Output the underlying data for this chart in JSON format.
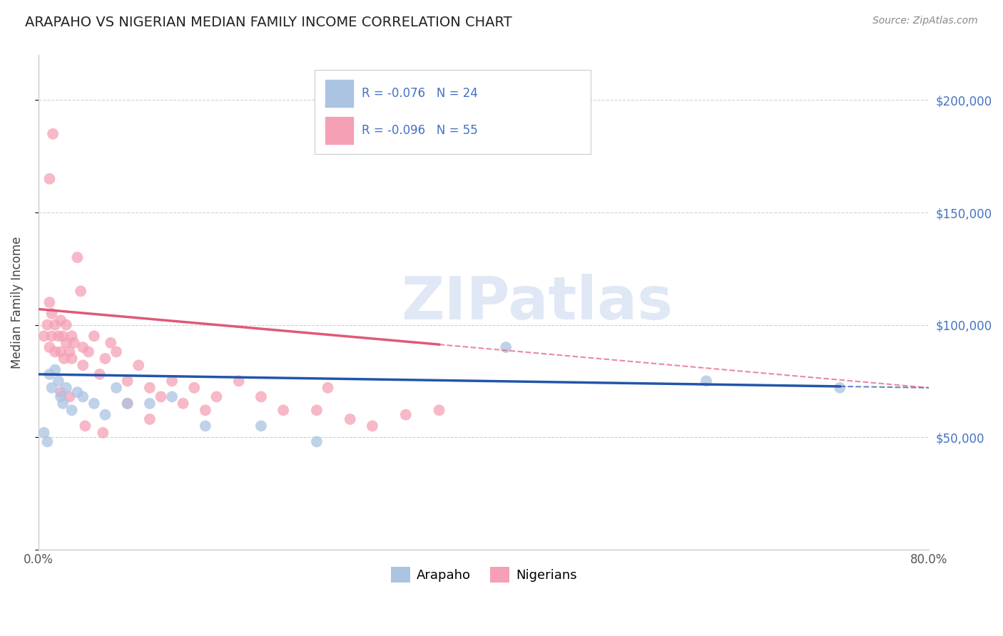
{
  "title": "ARAPAHO VS NIGERIAN MEDIAN FAMILY INCOME CORRELATION CHART",
  "source": "Source: ZipAtlas.com",
  "ylabel": "Median Family Income",
  "xmin": 0.0,
  "xmax": 80.0,
  "ymin": 0,
  "ymax": 220000,
  "yticks": [
    0,
    50000,
    100000,
    150000,
    200000
  ],
  "ytick_labels": [
    "",
    "$50,000",
    "$100,000",
    "$150,000",
    "$200,000"
  ],
  "grid_color": "#cccccc",
  "background_color": "#ffffff",
  "watermark_text": "ZIPatlas",
  "arapaho_color": "#aac4e2",
  "nigerian_color": "#f5a0b5",
  "arapaho_line_color": "#2255aa",
  "nigerian_line_color": "#e05878",
  "legend_bottom_arapaho": "Arapaho",
  "legend_bottom_nigerian": "Nigerians",
  "arapaho_R": -0.076,
  "arapaho_N": 24,
  "nigerian_R": -0.096,
  "nigerian_N": 55,
  "arapaho_line_x0": 0,
  "arapaho_line_x1": 80,
  "arapaho_line_y0": 78000,
  "arapaho_line_y1": 72000,
  "nigerian_line_x0": 0,
  "nigerian_line_x1": 80,
  "nigerian_line_y0": 107000,
  "nigerian_line_y1": 72000,
  "nigerian_solid_end_x": 36,
  "arapaho_solid_end_x": 72,
  "arapaho_scatter_x": [
    0.5,
    0.8,
    1.0,
    1.2,
    1.5,
    1.8,
    2.0,
    2.2,
    2.5,
    3.0,
    3.5,
    4.0,
    5.0,
    6.0,
    7.0,
    8.0,
    10.0,
    12.0,
    15.0,
    20.0,
    25.0,
    42.0,
    60.0,
    72.0
  ],
  "arapaho_scatter_y": [
    52000,
    48000,
    78000,
    72000,
    80000,
    75000,
    68000,
    65000,
    72000,
    62000,
    70000,
    68000,
    65000,
    60000,
    72000,
    65000,
    65000,
    68000,
    55000,
    55000,
    48000,
    90000,
    75000,
    72000
  ],
  "nigerian_scatter_x": [
    0.5,
    0.8,
    1.0,
    1.0,
    1.2,
    1.2,
    1.5,
    1.5,
    1.8,
    2.0,
    2.0,
    2.2,
    2.3,
    2.5,
    2.5,
    2.8,
    3.0,
    3.0,
    3.2,
    3.5,
    3.8,
    4.0,
    4.0,
    4.5,
    5.0,
    5.5,
    6.0,
    6.5,
    7.0,
    8.0,
    9.0,
    10.0,
    11.0,
    12.0,
    13.0,
    14.0,
    15.0,
    16.0,
    18.0,
    20.0,
    22.0,
    25.0,
    26.0,
    28.0,
    30.0,
    33.0,
    36.0,
    1.0,
    1.3,
    2.0,
    2.8,
    4.2,
    5.8,
    8.0,
    10.0
  ],
  "nigerian_scatter_y": [
    95000,
    100000,
    110000,
    90000,
    105000,
    95000,
    100000,
    88000,
    95000,
    102000,
    88000,
    95000,
    85000,
    100000,
    92000,
    88000,
    95000,
    85000,
    92000,
    130000,
    115000,
    90000,
    82000,
    88000,
    95000,
    78000,
    85000,
    92000,
    88000,
    75000,
    82000,
    72000,
    68000,
    75000,
    65000,
    72000,
    62000,
    68000,
    75000,
    68000,
    62000,
    62000,
    72000,
    58000,
    55000,
    60000,
    62000,
    165000,
    185000,
    70000,
    68000,
    55000,
    52000,
    65000,
    58000
  ]
}
